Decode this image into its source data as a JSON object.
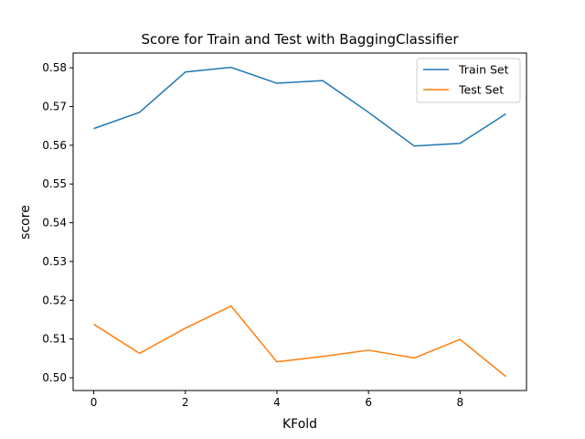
{
  "chart_data": {
    "type": "line",
    "title": "Score for Train and Test with BaggingClassifier",
    "xlabel": "KFold",
    "ylabel": "score",
    "x": [
      0,
      1,
      2,
      3,
      4,
      5,
      6,
      7,
      8,
      9
    ],
    "xlim": [
      -0.45,
      9.45
    ],
    "ylim": [
      0.4967,
      0.5838
    ],
    "xticks": [
      0,
      2,
      4,
      6,
      8
    ],
    "xtick_labels": [
      "0",
      "2",
      "4",
      "6",
      "8"
    ],
    "yticks": [
      0.5,
      0.51,
      0.52,
      0.53,
      0.54,
      0.55,
      0.56,
      0.57,
      0.58
    ],
    "ytick_labels": [
      "0.50",
      "0.51",
      "0.52",
      "0.53",
      "0.54",
      "0.55",
      "0.56",
      "0.57",
      "0.58"
    ],
    "grid": false,
    "legend_position": "top-right",
    "series": [
      {
        "name": "Train Set",
        "color": "#1f77b4",
        "values": [
          0.5643,
          0.5685,
          0.5789,
          0.5801,
          0.576,
          0.5767,
          0.5685,
          0.5598,
          0.5605,
          0.5681
        ]
      },
      {
        "name": "Test Set",
        "color": "#ff7f0e",
        "values": [
          0.5138,
          0.5063,
          0.5128,
          0.5185,
          0.5041,
          0.5055,
          0.5071,
          0.5051,
          0.5099,
          0.5003
        ]
      }
    ]
  }
}
